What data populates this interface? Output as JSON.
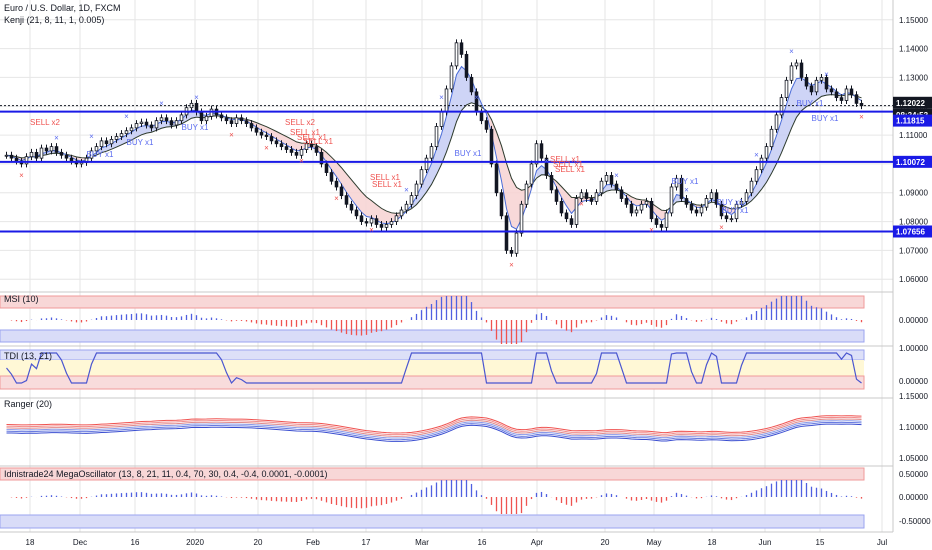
{
  "header": {
    "title": "Euro / U.S. Dollar, 1D, FXCM",
    "indicator": "Kenji (21, 8, 11, 1, 0.005)"
  },
  "colors": {
    "up": "#26a69a",
    "down": "#131722",
    "hline": "#1a1ae6",
    "sell": "#ef5350",
    "buy": "#5b6cf0",
    "grid": "#e6e6e6",
    "msi_up": "#5060e0",
    "msi_down": "#ef5350"
  },
  "price_labels": [
    {
      "label": "1.12022",
      "bg": "#131722",
      "fg": "#ffffff"
    },
    {
      "label": "08:34:53",
      "bg": "#131722",
      "fg": "#ffffff"
    },
    {
      "label": "1.11815",
      "bg": "#1a1ae6",
      "fg": "#ffffff"
    },
    {
      "label": "1.10072",
      "bg": "#1a1ae6",
      "fg": "#ffffff"
    },
    {
      "label": "1.07656",
      "bg": "#1a1ae6",
      "fg": "#ffffff"
    }
  ],
  "panes": {
    "msi": {
      "title": "MSI (10)",
      "ticks": [
        "0.00000"
      ]
    },
    "tdi": {
      "title": "TDI (13, 21)",
      "ticks": [
        "1.00000",
        "0.00000"
      ]
    },
    "ranger": {
      "title": "Ranger (20)",
      "ticks": [
        "1.15000",
        "1.10000",
        "1.05000"
      ]
    },
    "mega": {
      "title": "Idnistrade24 MegaOscillator (13, 8, 21, 11, 0.4, 70, 30, 0.4, -0.4, 0.0001, -0.0001)",
      "ticks": [
        "0.50000",
        "0.00000",
        "-0.50000"
      ]
    }
  },
  "signals": [
    {
      "text": "SELL x2",
      "type": "sell"
    },
    {
      "text": "BUY x1",
      "type": "buy"
    },
    {
      "text": "BUY x1",
      "type": "buy"
    },
    {
      "text": "BUY x1",
      "type": "buy"
    },
    {
      "text": "SELL x2",
      "type": "sell"
    },
    {
      "text": "SELL x1",
      "type": "sell"
    },
    {
      "text": "SELL x1",
      "type": "sell"
    },
    {
      "text": "SELL x1",
      "type": "sell"
    },
    {
      "text": "SELL x1",
      "type": "sell"
    },
    {
      "text": "SELL x1",
      "type": "sell"
    },
    {
      "text": "BUY x1",
      "type": "buy"
    },
    {
      "text": "SELL x1",
      "type": "sell"
    },
    {
      "text": "SELL x1",
      "type": "sell"
    },
    {
      "text": "SELL x1",
      "type": "sell"
    },
    {
      "text": "BUY x1",
      "type": "buy"
    },
    {
      "text": "BUY x1",
      "type": "buy"
    },
    {
      "text": "BUY x1",
      "type": "buy"
    },
    {
      "text": "BUY x1",
      "type": "buy"
    },
    {
      "text": "BUY x1",
      "type": "buy"
    }
  ],
  "chart_data": {
    "type": "candlestick",
    "symbol": "Euro / U.S. Dollar",
    "timeframe": "1D",
    "y_ticks": [
      "1.15000",
      "1.14000",
      "1.13000",
      "1.12000",
      "1.11000",
      "1.10000",
      "1.09000",
      "1.08000",
      "1.07000",
      "1.06000"
    ],
    "ylim": [
      1.058,
      1.152
    ],
    "x_ticks": [
      "18",
      "Dec",
      "16",
      "2020",
      "20",
      "Feb",
      "17",
      "Mar",
      "16",
      "Apr",
      "20",
      "May",
      "18",
      "Jun",
      "15",
      "Jul"
    ],
    "horizontal_levels": [
      1.11815,
      1.10072,
      1.07656
    ],
    "last_price": 1.12022,
    "closes": [
      1.103,
      1.102,
      1.101,
      1.1,
      1.1025,
      1.104,
      1.102,
      1.1055,
      1.1045,
      1.106,
      1.104,
      1.103,
      1.102,
      1.101,
      1.1,
      1.1005,
      1.102,
      1.1045,
      1.106,
      1.108,
      1.107,
      1.1085,
      1.1095,
      1.1105,
      1.1115,
      1.1125,
      1.114,
      1.1145,
      1.1135,
      1.1125,
      1.115,
      1.116,
      1.115,
      1.1135,
      1.115,
      1.117,
      1.1195,
      1.121,
      1.118,
      1.115,
      1.1165,
      1.119,
      1.117,
      1.116,
      1.115,
      1.114,
      1.116,
      1.115,
      1.114,
      1.1125,
      1.111,
      1.11,
      1.1095,
      1.108,
      1.107,
      1.106,
      1.105,
      1.104,
      1.103,
      1.105,
      1.107,
      1.106,
      1.104,
      1.1,
      1.097,
      1.094,
      1.092,
      1.089,
      1.086,
      1.084,
      1.082,
      1.08,
      1.0795,
      1.081,
      1.079,
      1.078,
      1.079,
      1.08,
      1.082,
      1.084,
      1.086,
      1.089,
      1.093,
      1.098,
      1.102,
      1.106,
      1.113,
      1.118,
      1.126,
      1.134,
      1.142,
      1.138,
      1.13,
      1.125,
      1.118,
      1.115,
      1.112,
      1.1,
      1.09,
      1.082,
      1.07,
      1.069,
      1.076,
      1.086,
      1.093,
      1.1,
      1.107,
      1.102,
      1.096,
      1.091,
      1.087,
      1.083,
      1.081,
      1.079,
      1.088,
      1.09,
      1.088,
      1.087,
      1.09,
      1.094,
      1.096,
      1.093,
      1.091,
      1.088,
      1.086,
      1.083,
      1.084,
      1.086,
      1.087,
      1.081,
      1.079,
      1.078,
      1.083,
      1.092,
      1.095,
      1.088,
      1.086,
      1.084,
      1.083,
      1.085,
      1.088,
      1.09,
      1.086,
      1.082,
      1.081,
      1.081,
      1.086,
      1.087,
      1.09,
      1.094,
      1.098,
      1.102,
      1.106,
      1.112,
      1.117,
      1.123,
      1.129,
      1.134,
      1.135,
      1.13,
      1.127,
      1.125,
      1.129,
      1.13,
      1.126,
      1.125,
      1.123,
      1.122,
      1.126,
      1.124,
      1.121,
      1.1202
    ]
  }
}
